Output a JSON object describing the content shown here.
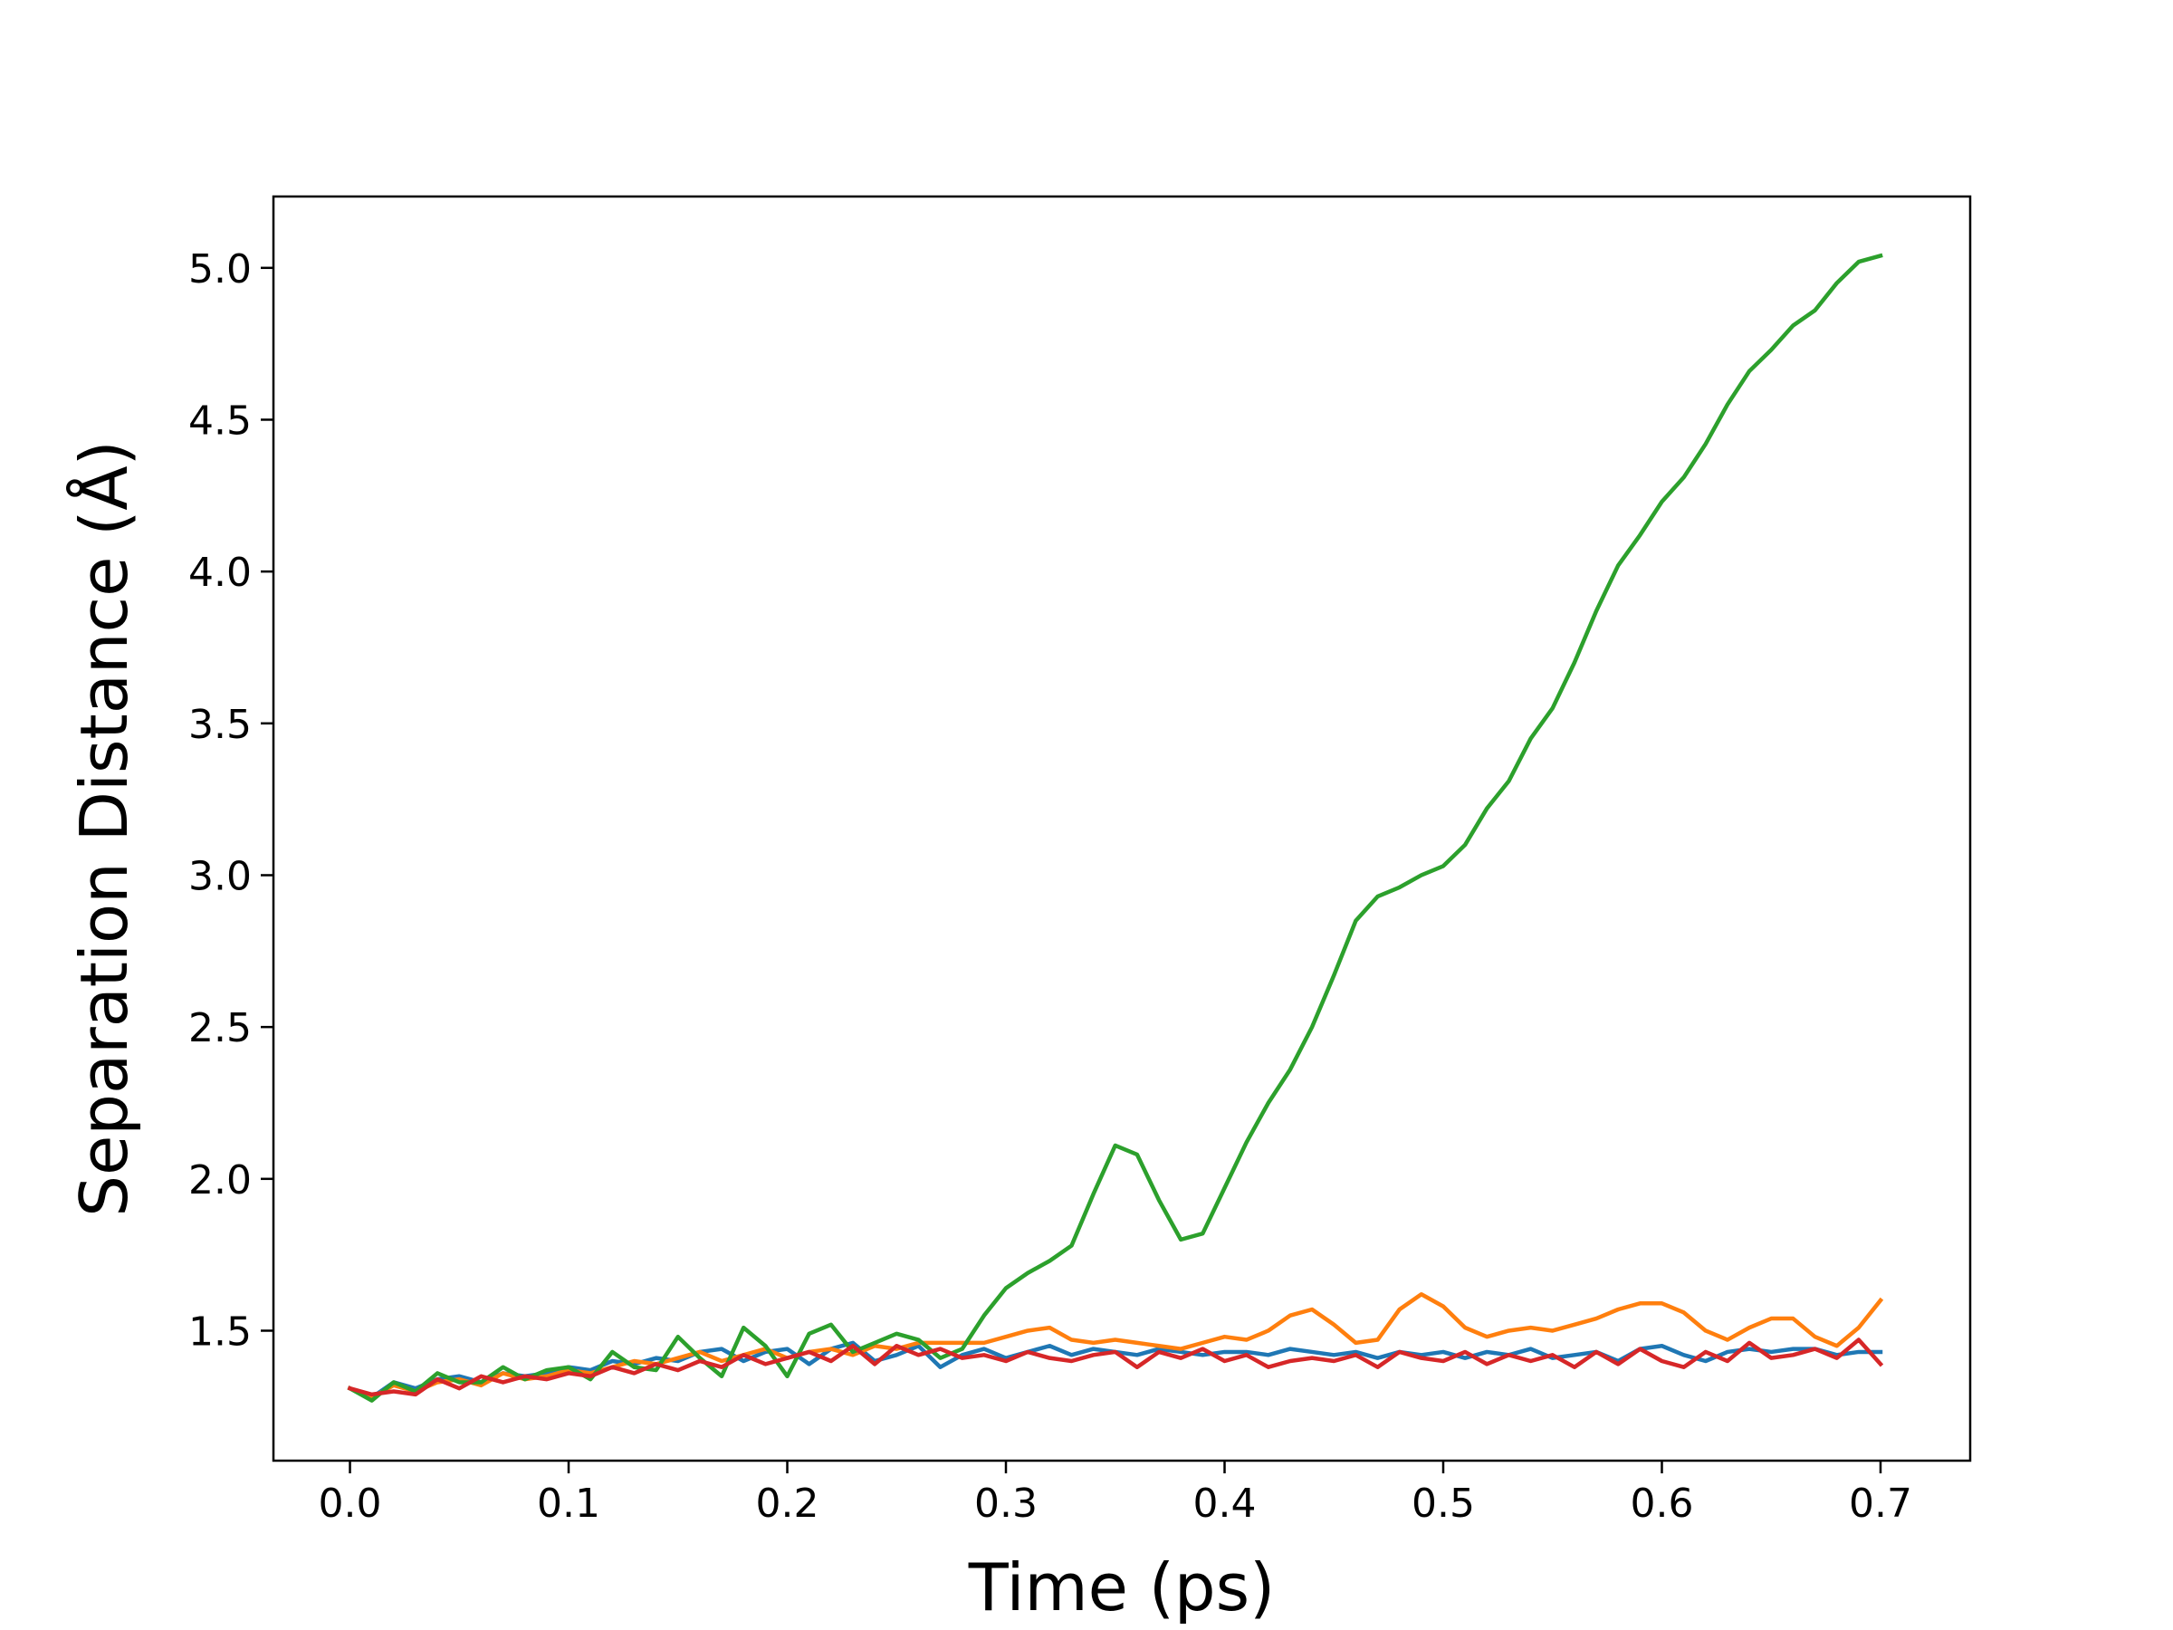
{
  "chart_data": {
    "type": "line",
    "xlabel": "Time (ps)",
    "ylabel": "Separation Distance (Å)",
    "x": [
      0,
      0.01,
      0.02,
      0.03,
      0.04,
      0.05,
      0.06,
      0.07,
      0.08,
      0.09,
      0.1,
      0.11,
      0.12,
      0.13,
      0.14,
      0.15,
      0.16,
      0.17,
      0.18,
      0.19,
      0.2,
      0.21,
      0.22,
      0.23,
      0.24,
      0.25,
      0.26,
      0.27,
      0.28,
      0.29,
      0.3,
      0.31,
      0.32,
      0.33,
      0.34,
      0.35,
      0.36,
      0.37,
      0.38,
      0.39,
      0.4,
      0.41,
      0.42,
      0.43,
      0.44,
      0.45,
      0.46,
      0.47,
      0.48,
      0.49,
      0.5,
      0.51,
      0.52,
      0.53,
      0.54,
      0.55,
      0.56,
      0.57,
      0.58,
      0.59,
      0.6,
      0.61,
      0.62,
      0.63,
      0.64,
      0.65,
      0.66,
      0.67,
      0.68,
      0.69,
      0.7
    ],
    "series": [
      {
        "color": "#1f77b4",
        "values": [
          1.31,
          1.28,
          1.33,
          1.31,
          1.34,
          1.35,
          1.33,
          1.36,
          1.35,
          1.36,
          1.38,
          1.37,
          1.4,
          1.39,
          1.41,
          1.4,
          1.43,
          1.44,
          1.4,
          1.43,
          1.44,
          1.39,
          1.44,
          1.46,
          1.4,
          1.42,
          1.45,
          1.38,
          1.42,
          1.44,
          1.41,
          1.43,
          1.45,
          1.42,
          1.44,
          1.43,
          1.42,
          1.44,
          1.43,
          1.42,
          1.43,
          1.43,
          1.42,
          1.44,
          1.43,
          1.42,
          1.43,
          1.41,
          1.43,
          1.42,
          1.43,
          1.41,
          1.43,
          1.42,
          1.44,
          1.41,
          1.42,
          1.43,
          1.4,
          1.44,
          1.45,
          1.42,
          1.4,
          1.43,
          1.44,
          1.43,
          1.44,
          1.44,
          1.42,
          1.43,
          1.43
        ]
      },
      {
        "color": "#ff7f0e",
        "values": [
          1.31,
          1.28,
          1.32,
          1.3,
          1.33,
          1.34,
          1.32,
          1.36,
          1.34,
          1.35,
          1.37,
          1.36,
          1.38,
          1.4,
          1.39,
          1.41,
          1.43,
          1.4,
          1.42,
          1.44,
          1.41,
          1.43,
          1.44,
          1.42,
          1.45,
          1.44,
          1.46,
          1.46,
          1.46,
          1.46,
          1.48,
          1.5,
          1.51,
          1.47,
          1.46,
          1.47,
          1.46,
          1.45,
          1.44,
          1.46,
          1.48,
          1.47,
          1.5,
          1.55,
          1.57,
          1.52,
          1.46,
          1.47,
          1.57,
          1.62,
          1.58,
          1.51,
          1.48,
          1.5,
          1.51,
          1.5,
          1.52,
          1.54,
          1.57,
          1.59,
          1.59,
          1.56,
          1.5,
          1.47,
          1.51,
          1.54,
          1.54,
          1.48,
          1.45,
          1.51,
          1.6
        ]
      },
      {
        "color": "#2ca02c",
        "values": [
          1.31,
          1.27,
          1.33,
          1.3,
          1.36,
          1.33,
          1.33,
          1.38,
          1.34,
          1.37,
          1.38,
          1.34,
          1.43,
          1.38,
          1.37,
          1.48,
          1.41,
          1.35,
          1.51,
          1.45,
          1.35,
          1.49,
          1.52,
          1.43,
          1.46,
          1.49,
          1.47,
          1.41,
          1.44,
          1.55,
          1.64,
          1.69,
          1.73,
          1.78,
          1.95,
          2.11,
          2.08,
          1.93,
          1.8,
          1.82,
          1.97,
          2.12,
          2.25,
          2.36,
          2.5,
          2.67,
          2.85,
          2.93,
          2.96,
          3.0,
          3.03,
          3.1,
          3.22,
          3.31,
          3.45,
          3.55,
          3.7,
          3.87,
          4.02,
          4.12,
          4.23,
          4.31,
          4.42,
          4.55,
          4.66,
          4.73,
          4.81,
          4.86,
          4.95,
          5.02,
          5.04
        ]
      },
      {
        "color": "#d62728",
        "values": [
          1.31,
          1.29,
          1.3,
          1.29,
          1.34,
          1.31,
          1.35,
          1.33,
          1.35,
          1.34,
          1.36,
          1.35,
          1.38,
          1.36,
          1.39,
          1.37,
          1.4,
          1.38,
          1.42,
          1.39,
          1.41,
          1.43,
          1.4,
          1.45,
          1.39,
          1.45,
          1.42,
          1.44,
          1.41,
          1.42,
          1.4,
          1.43,
          1.41,
          1.4,
          1.42,
          1.43,
          1.38,
          1.43,
          1.41,
          1.44,
          1.4,
          1.42,
          1.38,
          1.4,
          1.41,
          1.4,
          1.42,
          1.38,
          1.43,
          1.41,
          1.4,
          1.43,
          1.39,
          1.42,
          1.4,
          1.42,
          1.38,
          1.43,
          1.39,
          1.44,
          1.4,
          1.38,
          1.43,
          1.4,
          1.46,
          1.41,
          1.42,
          1.44,
          1.41,
          1.47,
          1.39
        ]
      }
    ],
    "xlim": [
      -0.035,
      0.741
    ],
    "ylim": [
      1.072,
      5.235
    ],
    "xticks": [
      {
        "value": 0,
        "label": "0.0"
      },
      0.1,
      0.2,
      0.3,
      0.4,
      0.5,
      0.6,
      0.7
    ],
    "yticks": [
      1.5,
      {
        "value": 2,
        "label": "2.0"
      },
      2.5,
      {
        "value": 3,
        "label": "3.0"
      },
      3.5,
      {
        "value": 4,
        "label": "4.0"
      },
      4.5,
      {
        "value": 5,
        "label": "5.0"
      }
    ],
    "grid": false
  }
}
